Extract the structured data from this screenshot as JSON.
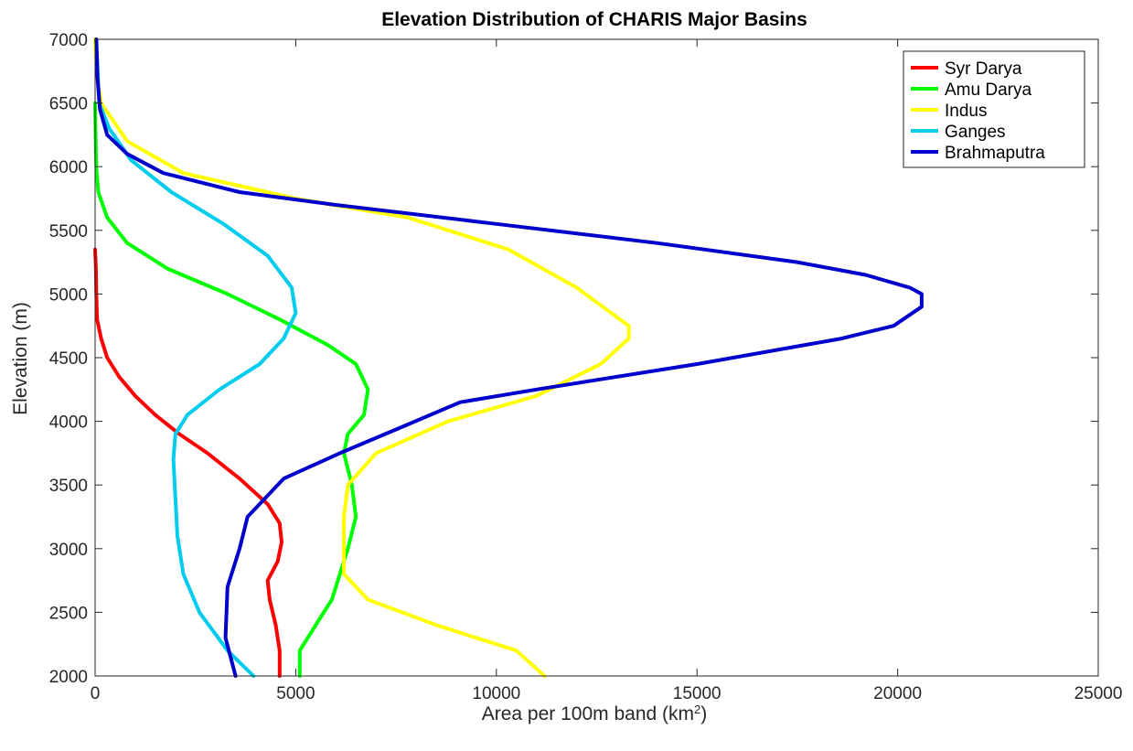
{
  "chart_data": {
    "type": "line",
    "title": "Elevation Distribution of CHARIS Major Basins",
    "xlabel_main": "Area per 100m band (km",
    "xlabel_sup": "2",
    "xlabel_tail": ")",
    "ylabel": "Elevation (m)",
    "xlim": [
      0,
      25000
    ],
    "ylim": [
      2000,
      7000
    ],
    "xticks": [
      0,
      5000,
      10000,
      15000,
      20000,
      25000
    ],
    "yticks": [
      2000,
      2500,
      3000,
      3500,
      4000,
      4500,
      5000,
      5500,
      6000,
      6500,
      7000
    ],
    "grid": false,
    "legend_position": "top-right",
    "series": [
      {
        "name": "Syr Darya",
        "color": "#ff0000",
        "points": [
          [
            4600,
            2000
          ],
          [
            4600,
            2200
          ],
          [
            4500,
            2400
          ],
          [
            4350,
            2600
          ],
          [
            4300,
            2750
          ],
          [
            4550,
            2900
          ],
          [
            4650,
            3050
          ],
          [
            4600,
            3200
          ],
          [
            4300,
            3350
          ],
          [
            3600,
            3550
          ],
          [
            2800,
            3750
          ],
          [
            2100,
            3900
          ],
          [
            1500,
            4050
          ],
          [
            1000,
            4200
          ],
          [
            600,
            4350
          ],
          [
            300,
            4500
          ],
          [
            150,
            4650
          ],
          [
            50,
            4800
          ],
          [
            30,
            5000
          ],
          [
            20,
            5200
          ],
          [
            0,
            5350
          ]
        ]
      },
      {
        "name": "Amu Darya",
        "color": "#00ff00",
        "points": [
          [
            5100,
            2000
          ],
          [
            5100,
            2200
          ],
          [
            5500,
            2400
          ],
          [
            5900,
            2600
          ],
          [
            6100,
            2800
          ],
          [
            6300,
            3000
          ],
          [
            6500,
            3250
          ],
          [
            6400,
            3500
          ],
          [
            6200,
            3750
          ],
          [
            6300,
            3900
          ],
          [
            6700,
            4050
          ],
          [
            6800,
            4250
          ],
          [
            6500,
            4450
          ],
          [
            5800,
            4600
          ],
          [
            4600,
            4800
          ],
          [
            3300,
            5000
          ],
          [
            1800,
            5200
          ],
          [
            800,
            5400
          ],
          [
            300,
            5600
          ],
          [
            80,
            5800
          ],
          [
            30,
            6000
          ],
          [
            10,
            6300
          ],
          [
            0,
            6500
          ]
        ]
      },
      {
        "name": "Indus",
        "color": "#ffff00",
        "points": [
          [
            11200,
            2000
          ],
          [
            10500,
            2200
          ],
          [
            8500,
            2400
          ],
          [
            6800,
            2600
          ],
          [
            6200,
            2800
          ],
          [
            6200,
            3000
          ],
          [
            6200,
            3250
          ],
          [
            6300,
            3500
          ],
          [
            7000,
            3750
          ],
          [
            8800,
            4000
          ],
          [
            11000,
            4200
          ],
          [
            12600,
            4450
          ],
          [
            13300,
            4650
          ],
          [
            13300,
            4750
          ],
          [
            12000,
            5050
          ],
          [
            10300,
            5350
          ],
          [
            7800,
            5600
          ],
          [
            5000,
            5750
          ],
          [
            2200,
            5950
          ],
          [
            800,
            6200
          ],
          [
            150,
            6500
          ],
          [
            50,
            6700
          ],
          [
            0,
            7000
          ]
        ]
      },
      {
        "name": "Ganges",
        "color": "#00ccee",
        "points": [
          [
            3950,
            2000
          ],
          [
            3300,
            2200
          ],
          [
            2600,
            2500
          ],
          [
            2200,
            2800
          ],
          [
            2050,
            3100
          ],
          [
            2000,
            3400
          ],
          [
            1950,
            3700
          ],
          [
            2000,
            3900
          ],
          [
            2300,
            4050
          ],
          [
            3100,
            4250
          ],
          [
            4100,
            4450
          ],
          [
            4700,
            4650
          ],
          [
            5000,
            4850
          ],
          [
            4900,
            5050
          ],
          [
            4300,
            5300
          ],
          [
            3200,
            5550
          ],
          [
            1900,
            5800
          ],
          [
            900,
            6050
          ],
          [
            350,
            6300
          ],
          [
            100,
            6500
          ],
          [
            30,
            7000
          ]
        ]
      },
      {
        "name": "Brahmaputra",
        "color": "#0000cc",
        "points": [
          [
            3500,
            2000
          ],
          [
            3250,
            2300
          ],
          [
            3300,
            2700
          ],
          [
            3600,
            3000
          ],
          [
            3800,
            3250
          ],
          [
            4700,
            3550
          ],
          [
            6100,
            3750
          ],
          [
            7600,
            3950
          ],
          [
            9100,
            4150
          ],
          [
            11000,
            4250
          ],
          [
            15000,
            4450
          ],
          [
            18600,
            4650
          ],
          [
            19900,
            4750
          ],
          [
            20600,
            4900
          ],
          [
            20600,
            5000
          ],
          [
            20300,
            5050
          ],
          [
            19200,
            5150
          ],
          [
            17500,
            5250
          ],
          [
            14000,
            5400
          ],
          [
            10000,
            5550
          ],
          [
            6000,
            5700
          ],
          [
            3600,
            5800
          ],
          [
            1700,
            5950
          ],
          [
            800,
            6100
          ],
          [
            300,
            6250
          ],
          [
            120,
            6450
          ],
          [
            60,
            6700
          ],
          [
            30,
            7000
          ]
        ]
      }
    ]
  }
}
